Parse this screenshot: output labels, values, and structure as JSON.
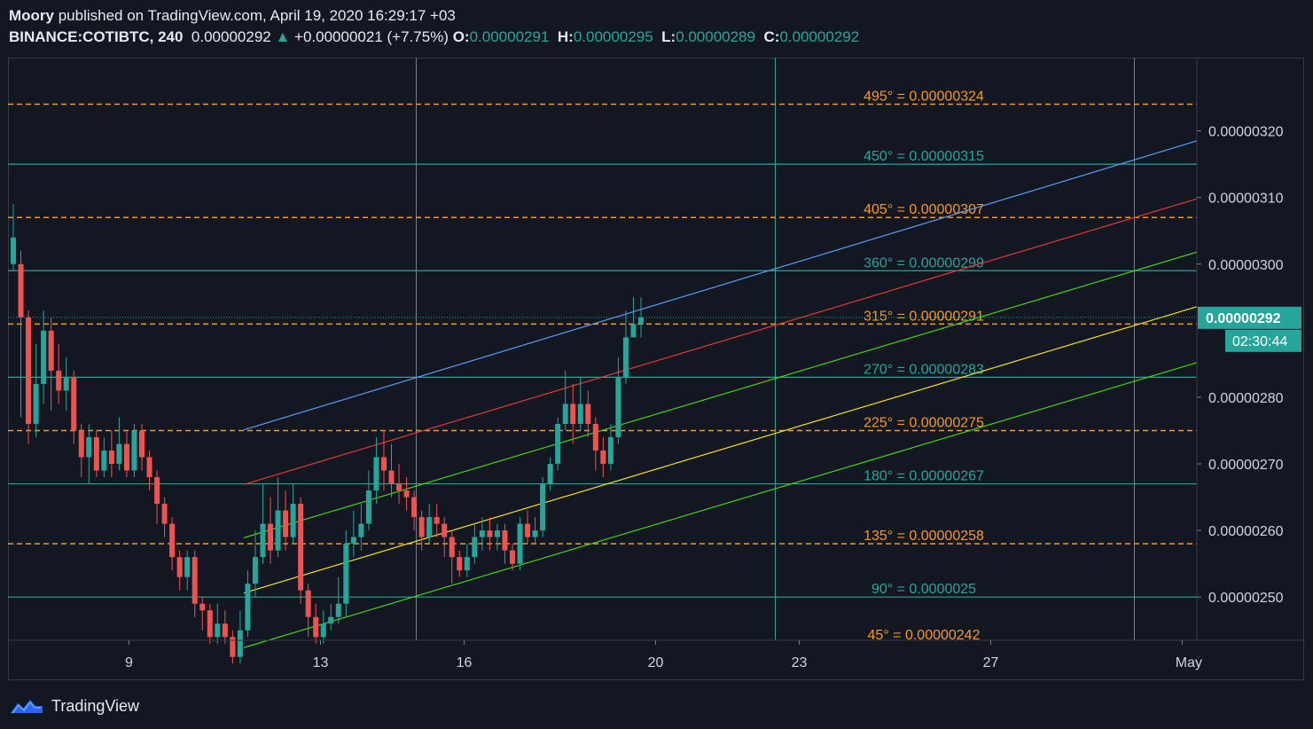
{
  "header": {
    "author": "Moory",
    "published": " published on TradingView.com, April 19, 2020 16:29:17 +03",
    "symbol": "BINANCE:COTIBTC, 240",
    "last": "0.00000292",
    "arrow": "▲",
    "change": "+0.00000021 (+7.75%)",
    "o_label": "O:",
    "o_value": "0.00000291",
    "h_label": "H:",
    "h_value": "0.00000295",
    "l_label": "L:",
    "l_value": "0.00000289",
    "c_label": "C:",
    "c_value": "0.00000292"
  },
  "footer": {
    "brand": "TradingView"
  },
  "colors": {
    "background": "#131722",
    "up": "#26a69a",
    "down": "#ef5350",
    "gann_orange": "#f89a1c",
    "gann_teal": "#26a69a",
    "channel_blue": "#5b9cf6",
    "channel_red": "#e53935",
    "channel_green": "#43d40f",
    "channel_yellow": "#f5e11d"
  },
  "chart_data": {
    "type": "candlestick",
    "symbol": "BINANCE:COTIBTC",
    "interval": "240",
    "ylim": [
      2.435e-06,
      3.31e-06
    ],
    "x_ticks": [
      "9",
      "13",
      "16",
      "20",
      "23",
      "27",
      "May"
    ],
    "y_ticks": [
      "0.00000320",
      "0.00000310",
      "0.00000300",
      "0.00000280",
      "0.00000270",
      "0.00000260",
      "0.00000250"
    ],
    "y_tick_values": [
      3.2e-06,
      3.1e-06,
      3e-06,
      2.8e-06,
      2.7e-06,
      2.6e-06,
      2.5e-06
    ],
    "last_price_label": "0.00000292",
    "last_price_value": 2.92e-06,
    "countdown": "02:30:44",
    "gann_levels": [
      {
        "label": "495° = 0.00000324",
        "value": 3.24e-06,
        "style": "orange"
      },
      {
        "label": "450° = 0.00000315",
        "value": 3.15e-06,
        "style": "teal"
      },
      {
        "label": "405° = 0.00000307",
        "value": 3.07e-06,
        "style": "orange"
      },
      {
        "label": "360° = 0.00000299",
        "value": 2.99e-06,
        "style": "teal"
      },
      {
        "label": "315° = 0.00000291",
        "value": 2.91e-06,
        "style": "orange"
      },
      {
        "label": "270° = 0.00000283",
        "value": 2.83e-06,
        "style": "teal"
      },
      {
        "label": "225° = 0.00000275",
        "value": 2.75e-06,
        "style": "orange"
      },
      {
        "label": "180° = 0.00000267",
        "value": 2.67e-06,
        "style": "teal"
      },
      {
        "label": "135° = 0.00000258",
        "value": 2.58e-06,
        "style": "orange"
      },
      {
        "label": "90° = 0.0000025",
        "value": 2.5e-06,
        "style": "teal"
      },
      {
        "label": "45° = 0.00000242",
        "value": 2.42e-06,
        "style": "orange"
      }
    ],
    "channel_lines": [
      {
        "color": "blue",
        "start": {
          "x": "Apr 11",
          "y": 2.751e-06
        },
        "end": {
          "x": "Apr 30",
          "y": 3.185e-06
        }
      },
      {
        "color": "red",
        "start": {
          "x": "Apr 11",
          "y": 2.669e-06
        },
        "end": {
          "x": "Apr 30",
          "y": 3.098e-06
        }
      },
      {
        "color": "green",
        "start": {
          "x": "Apr 11",
          "y": 2.589e-06
        },
        "end": {
          "x": "Apr 30",
          "y": 3.018e-06
        }
      },
      {
        "color": "yellow",
        "start": {
          "x": "Apr 11",
          "y": 2.506e-06
        },
        "end": {
          "x": "Apr 30",
          "y": 2.936e-06
        }
      },
      {
        "color": "green",
        "start": {
          "x": "Apr 11",
          "y": 2.424e-06
        },
        "end": {
          "x": "Apr 30",
          "y": 2.852e-06
        }
      }
    ],
    "candles": [
      [
        3.0,
        3.04,
        3.09,
        2.99
      ],
      [
        3.0,
        2.92,
        3.02,
        2.77
      ],
      [
        2.92,
        2.76,
        2.93,
        2.73
      ],
      [
        2.76,
        2.82,
        2.88,
        2.74
      ],
      [
        2.82,
        2.9,
        2.93,
        2.79
      ],
      [
        2.9,
        2.84,
        2.92,
        2.78
      ],
      [
        2.84,
        2.81,
        2.88,
        2.79
      ],
      [
        2.81,
        2.83,
        2.86,
        2.78
      ],
      [
        2.83,
        2.75,
        2.84,
        2.73
      ],
      [
        2.75,
        2.71,
        2.76,
        2.68
      ],
      [
        2.71,
        2.74,
        2.76,
        2.67
      ],
      [
        2.74,
        2.69,
        2.75,
        2.68
      ],
      [
        2.69,
        2.72,
        2.74,
        2.68
      ],
      [
        2.72,
        2.7,
        2.75,
        2.68
      ],
      [
        2.7,
        2.73,
        2.77,
        2.69
      ],
      [
        2.73,
        2.69,
        2.75,
        2.68
      ],
      [
        2.69,
        2.75,
        2.76,
        2.68
      ],
      [
        2.75,
        2.71,
        2.76,
        2.69
      ],
      [
        2.71,
        2.68,
        2.72,
        2.66
      ],
      [
        2.68,
        2.64,
        2.69,
        2.61
      ],
      [
        2.64,
        2.61,
        2.65,
        2.59
      ],
      [
        2.61,
        2.56,
        2.62,
        2.54
      ],
      [
        2.56,
        2.53,
        2.57,
        2.51
      ],
      [
        2.53,
        2.56,
        2.57,
        2.51
      ],
      [
        2.56,
        2.49,
        2.57,
        2.47
      ],
      [
        2.49,
        2.48,
        2.5,
        2.45
      ],
      [
        2.48,
        2.44,
        2.49,
        2.43
      ],
      [
        2.44,
        2.46,
        2.49,
        2.43
      ],
      [
        2.46,
        2.44,
        2.48,
        2.43
      ],
      [
        2.44,
        2.41,
        2.45,
        2.4
      ],
      [
        2.41,
        2.45,
        2.48,
        2.4
      ],
      [
        2.45,
        2.52,
        2.54,
        2.44
      ],
      [
        2.52,
        2.56,
        2.6,
        2.5
      ],
      [
        2.56,
        2.61,
        2.67,
        2.55
      ],
      [
        2.61,
        2.57,
        2.65,
        2.55
      ],
      [
        2.57,
        2.63,
        2.68,
        2.56
      ],
      [
        2.63,
        2.59,
        2.66,
        2.57
      ],
      [
        2.59,
        2.64,
        2.67,
        2.58
      ],
      [
        2.64,
        2.51,
        2.65,
        2.49
      ],
      [
        2.51,
        2.47,
        2.52,
        2.44
      ],
      [
        2.47,
        2.44,
        2.49,
        2.43
      ],
      [
        2.44,
        2.46,
        2.48,
        2.43
      ],
      [
        2.46,
        2.47,
        2.49,
        2.45
      ],
      [
        2.47,
        2.49,
        2.53,
        2.46
      ],
      [
        2.49,
        2.58,
        2.6,
        2.47
      ],
      [
        2.58,
        2.59,
        2.63,
        2.56
      ],
      [
        2.59,
        2.61,
        2.64,
        2.57
      ],
      [
        2.61,
        2.66,
        2.69,
        2.6
      ],
      [
        2.66,
        2.71,
        2.74,
        2.64
      ],
      [
        2.71,
        2.69,
        2.75,
        2.66
      ],
      [
        2.69,
        2.67,
        2.73,
        2.65
      ],
      [
        2.67,
        2.66,
        2.7,
        2.64
      ],
      [
        2.66,
        2.65,
        2.68,
        2.63
      ],
      [
        2.65,
        2.62,
        2.66,
        2.6
      ],
      [
        2.62,
        2.59,
        2.63,
        2.57
      ],
      [
        2.59,
        2.62,
        2.64,
        2.58
      ],
      [
        2.62,
        2.61,
        2.64,
        2.59
      ],
      [
        2.61,
        2.59,
        2.62,
        2.56
      ],
      [
        2.59,
        2.56,
        2.6,
        2.52
      ],
      [
        2.56,
        2.54,
        2.57,
        2.53
      ],
      [
        2.54,
        2.56,
        2.58,
        2.53
      ],
      [
        2.56,
        2.59,
        2.61,
        2.55
      ],
      [
        2.59,
        2.6,
        2.62,
        2.57
      ],
      [
        2.6,
        2.59,
        2.62,
        2.57
      ],
      [
        2.59,
        2.6,
        2.61,
        2.57
      ],
      [
        2.6,
        2.57,
        2.61,
        2.55
      ],
      [
        2.57,
        2.55,
        2.58,
        2.54
      ],
      [
        2.55,
        2.61,
        2.62,
        2.54
      ],
      [
        2.61,
        2.59,
        2.63,
        2.58
      ],
      [
        2.59,
        2.6,
        2.62,
        2.58
      ],
      [
        2.6,
        2.67,
        2.68,
        2.59
      ],
      [
        2.67,
        2.7,
        2.71,
        2.66
      ],
      [
        2.7,
        2.76,
        2.77,
        2.69
      ],
      [
        2.76,
        2.79,
        2.84,
        2.75
      ],
      [
        2.79,
        2.76,
        2.82,
        2.73
      ],
      [
        2.76,
        2.79,
        2.83,
        2.75
      ],
      [
        2.79,
        2.76,
        2.81,
        2.74
      ],
      [
        2.76,
        2.72,
        2.77,
        2.69
      ],
      [
        2.72,
        2.7,
        2.74,
        2.68
      ],
      [
        2.7,
        2.74,
        2.76,
        2.69
      ],
      [
        2.74,
        2.83,
        2.86,
        2.73
      ],
      [
        2.83,
        2.89,
        2.93,
        2.82
      ],
      [
        2.89,
        2.91,
        2.95,
        2.89
      ],
      [
        2.91,
        2.92,
        2.95,
        2.89
      ]
    ]
  }
}
